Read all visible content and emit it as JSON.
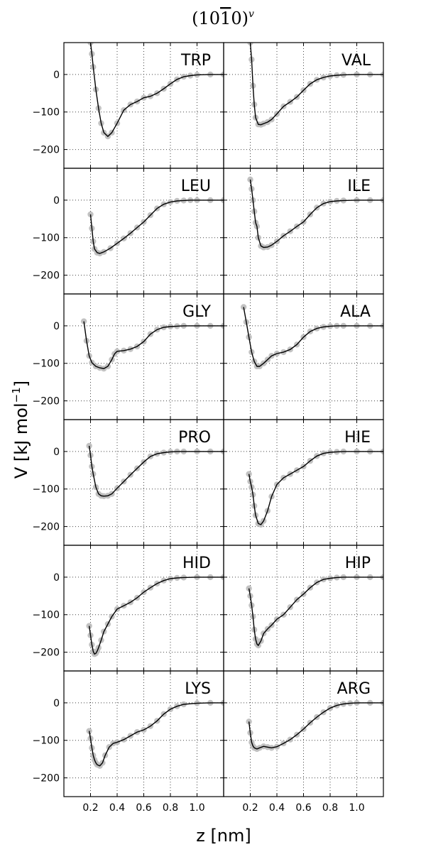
{
  "figure": {
    "title_base": "(10",
    "title_bar_digit": "1",
    "title_tail": "0)",
    "title_superscript": "v",
    "xlabel": "z [nm]",
    "ylabel_main": "V [kJ mol",
    "ylabel_sup": "−1",
    "ylabel_close": "]"
  },
  "chart_data": {
    "type": "line",
    "layout": "6 rows x 2 columns, shared axes",
    "xlim": [
      0.0,
      1.2
    ],
    "ylim": [
      -250,
      85
    ],
    "xticks": [
      0.2,
      0.4,
      0.6,
      0.8,
      1.0
    ],
    "xtick_labels": [
      "0.2",
      "0.4",
      "0.6",
      "0.8",
      "1.0"
    ],
    "yticks": [
      0,
      -100,
      -200
    ],
    "ytick_labels": [
      "0",
      "−100",
      "−200"
    ],
    "grid": true,
    "colors": {
      "fit_line": "#000000",
      "data_points": "#bbbbbb",
      "grid": "#444444"
    },
    "panels": [
      {
        "label": "TRP",
        "x": [
          0.2,
          0.21,
          0.22,
          0.24,
          0.26,
          0.28,
          0.3,
          0.33,
          0.36,
          0.4,
          0.45,
          0.5,
          0.55,
          0.6,
          0.65,
          0.7,
          0.75,
          0.8,
          0.85,
          0.9,
          0.95,
          1.0,
          1.1,
          1.2
        ],
        "y": [
          85,
          55,
          20,
          -40,
          -90,
          -130,
          -155,
          -165,
          -155,
          -130,
          -95,
          -80,
          -72,
          -62,
          -58,
          -50,
          -38,
          -25,
          -13,
          -6,
          -3,
          -1,
          0,
          0
        ]
      },
      {
        "label": "VAL",
        "x": [
          0.2,
          0.21,
          0.22,
          0.23,
          0.24,
          0.26,
          0.28,
          0.3,
          0.33,
          0.36,
          0.4,
          0.45,
          0.5,
          0.55,
          0.6,
          0.65,
          0.7,
          0.75,
          0.8,
          0.85,
          0.9,
          1.0,
          1.1,
          1.2
        ],
        "y": [
          85,
          40,
          -30,
          -80,
          -115,
          -133,
          -134,
          -131,
          -127,
          -120,
          -105,
          -85,
          -73,
          -60,
          -42,
          -25,
          -14,
          -8,
          -4,
          -2,
          -1,
          0,
          0,
          0
        ]
      },
      {
        "label": "LEU",
        "x": [
          0.2,
          0.21,
          0.22,
          0.23,
          0.25,
          0.27,
          0.3,
          0.35,
          0.4,
          0.45,
          0.5,
          0.55,
          0.6,
          0.65,
          0.7,
          0.75,
          0.8,
          0.85,
          0.9,
          0.95,
          1.0,
          1.1,
          1.2
        ],
        "y": [
          -38,
          -75,
          -110,
          -130,
          -140,
          -142,
          -138,
          -128,
          -115,
          -102,
          -88,
          -73,
          -58,
          -40,
          -22,
          -11,
          -5,
          -2,
          -1,
          0,
          0,
          0,
          0
        ]
      },
      {
        "label": "ILE",
        "x": [
          0.2,
          0.21,
          0.22,
          0.23,
          0.24,
          0.25,
          0.26,
          0.28,
          0.3,
          0.33,
          0.36,
          0.4,
          0.45,
          0.5,
          0.55,
          0.6,
          0.65,
          0.7,
          0.75,
          0.8,
          0.85,
          0.9,
          1.0,
          1.1,
          1.2
        ],
        "y": [
          55,
          30,
          0,
          -30,
          -60,
          -70,
          -100,
          -122,
          -126,
          -125,
          -120,
          -110,
          -95,
          -83,
          -70,
          -58,
          -38,
          -20,
          -9,
          -4,
          -2,
          -1,
          0,
          0,
          0
        ]
      },
      {
        "label": "GLY",
        "x": [
          0.15,
          0.17,
          0.19,
          0.21,
          0.24,
          0.27,
          0.3,
          0.33,
          0.36,
          0.38,
          0.4,
          0.45,
          0.5,
          0.55,
          0.6,
          0.65,
          0.7,
          0.75,
          0.8,
          0.85,
          0.9,
          1.0,
          1.1,
          1.2
        ],
        "y": [
          12,
          -40,
          -80,
          -98,
          -108,
          -112,
          -114,
          -108,
          -90,
          -75,
          -68,
          -66,
          -62,
          -55,
          -42,
          -22,
          -10,
          -4,
          -2,
          -1,
          0,
          0,
          0,
          0
        ]
      },
      {
        "label": "ALA",
        "x": [
          0.15,
          0.17,
          0.19,
          0.21,
          0.23,
          0.25,
          0.27,
          0.3,
          0.33,
          0.36,
          0.4,
          0.45,
          0.5,
          0.55,
          0.6,
          0.65,
          0.7,
          0.75,
          0.8,
          0.85,
          0.9,
          1.0,
          1.1,
          1.2
        ],
        "y": [
          50,
          10,
          -30,
          -70,
          -95,
          -108,
          -108,
          -100,
          -90,
          -80,
          -74,
          -70,
          -63,
          -50,
          -30,
          -15,
          -7,
          -3,
          -1,
          0,
          0,
          0,
          0,
          0
        ]
      },
      {
        "label": "PRO",
        "x": [
          0.19,
          0.2,
          0.21,
          0.22,
          0.24,
          0.26,
          0.28,
          0.3,
          0.33,
          0.36,
          0.4,
          0.45,
          0.5,
          0.55,
          0.6,
          0.65,
          0.7,
          0.75,
          0.8,
          0.85,
          0.9,
          1.0,
          1.1,
          1.2
        ],
        "y": [
          15,
          -10,
          -40,
          -60,
          -95,
          -113,
          -118,
          -119,
          -118,
          -113,
          -98,
          -80,
          -62,
          -45,
          -28,
          -13,
          -6,
          -3,
          -1,
          0,
          0,
          0,
          0,
          0
        ]
      },
      {
        "label": "HIE",
        "x": [
          0.19,
          0.2,
          0.21,
          0.22,
          0.23,
          0.24,
          0.26,
          0.28,
          0.3,
          0.33,
          0.36,
          0.4,
          0.45,
          0.5,
          0.55,
          0.6,
          0.65,
          0.7,
          0.75,
          0.8,
          0.85,
          0.9,
          1.0,
          1.1,
          1.2
        ],
        "y": [
          -60,
          -80,
          -95,
          -115,
          -145,
          -170,
          -192,
          -195,
          -185,
          -158,
          -120,
          -88,
          -70,
          -60,
          -50,
          -40,
          -25,
          -12,
          -5,
          -2,
          -1,
          0,
          0,
          0,
          0
        ]
      },
      {
        "label": "HID",
        "x": [
          0.19,
          0.2,
          0.21,
          0.22,
          0.23,
          0.24,
          0.25,
          0.26,
          0.28,
          0.3,
          0.33,
          0.36,
          0.4,
          0.45,
          0.5,
          0.55,
          0.6,
          0.65,
          0.7,
          0.75,
          0.8,
          0.85,
          0.9,
          1.0,
          1.1,
          1.2
        ],
        "y": [
          -130,
          -155,
          -180,
          -198,
          -205,
          -203,
          -197,
          -188,
          -168,
          -145,
          -125,
          -105,
          -85,
          -76,
          -67,
          -55,
          -40,
          -28,
          -17,
          -9,
          -4,
          -2,
          -1,
          0,
          0,
          0
        ]
      },
      {
        "label": "HIP",
        "x": [
          0.19,
          0.2,
          0.21,
          0.22,
          0.23,
          0.24,
          0.25,
          0.26,
          0.28,
          0.3,
          0.33,
          0.36,
          0.4,
          0.45,
          0.5,
          0.55,
          0.6,
          0.65,
          0.7,
          0.75,
          0.8,
          0.85,
          0.9,
          1.0,
          1.1,
          1.2
        ],
        "y": [
          -30,
          -50,
          -75,
          -105,
          -140,
          -165,
          -178,
          -182,
          -170,
          -150,
          -138,
          -128,
          -112,
          -100,
          -80,
          -60,
          -45,
          -28,
          -14,
          -6,
          -3,
          -1,
          0,
          0,
          0,
          0
        ]
      },
      {
        "label": "LYS",
        "x": [
          0.19,
          0.2,
          0.21,
          0.22,
          0.23,
          0.24,
          0.25,
          0.27,
          0.29,
          0.31,
          0.34,
          0.37,
          0.4,
          0.45,
          0.5,
          0.55,
          0.6,
          0.65,
          0.7,
          0.75,
          0.8,
          0.85,
          0.9,
          1.0,
          1.1,
          1.2
        ],
        "y": [
          -75,
          -95,
          -120,
          -140,
          -152,
          -160,
          -165,
          -168,
          -160,
          -140,
          -118,
          -108,
          -105,
          -98,
          -88,
          -78,
          -72,
          -62,
          -48,
          -30,
          -17,
          -9,
          -4,
          -1,
          0,
          0
        ]
      },
      {
        "label": "ARG",
        "x": [
          0.19,
          0.2,
          0.21,
          0.22,
          0.23,
          0.25,
          0.27,
          0.3,
          0.33,
          0.36,
          0.4,
          0.45,
          0.5,
          0.55,
          0.6,
          0.65,
          0.7,
          0.75,
          0.8,
          0.85,
          0.9,
          0.95,
          1.0,
          1.1,
          1.2
        ],
        "y": [
          -50,
          -80,
          -105,
          -115,
          -120,
          -123,
          -120,
          -116,
          -118,
          -120,
          -117,
          -108,
          -98,
          -85,
          -70,
          -53,
          -38,
          -25,
          -14,
          -7,
          -3,
          -1,
          0,
          0,
          0
        ]
      }
    ]
  }
}
